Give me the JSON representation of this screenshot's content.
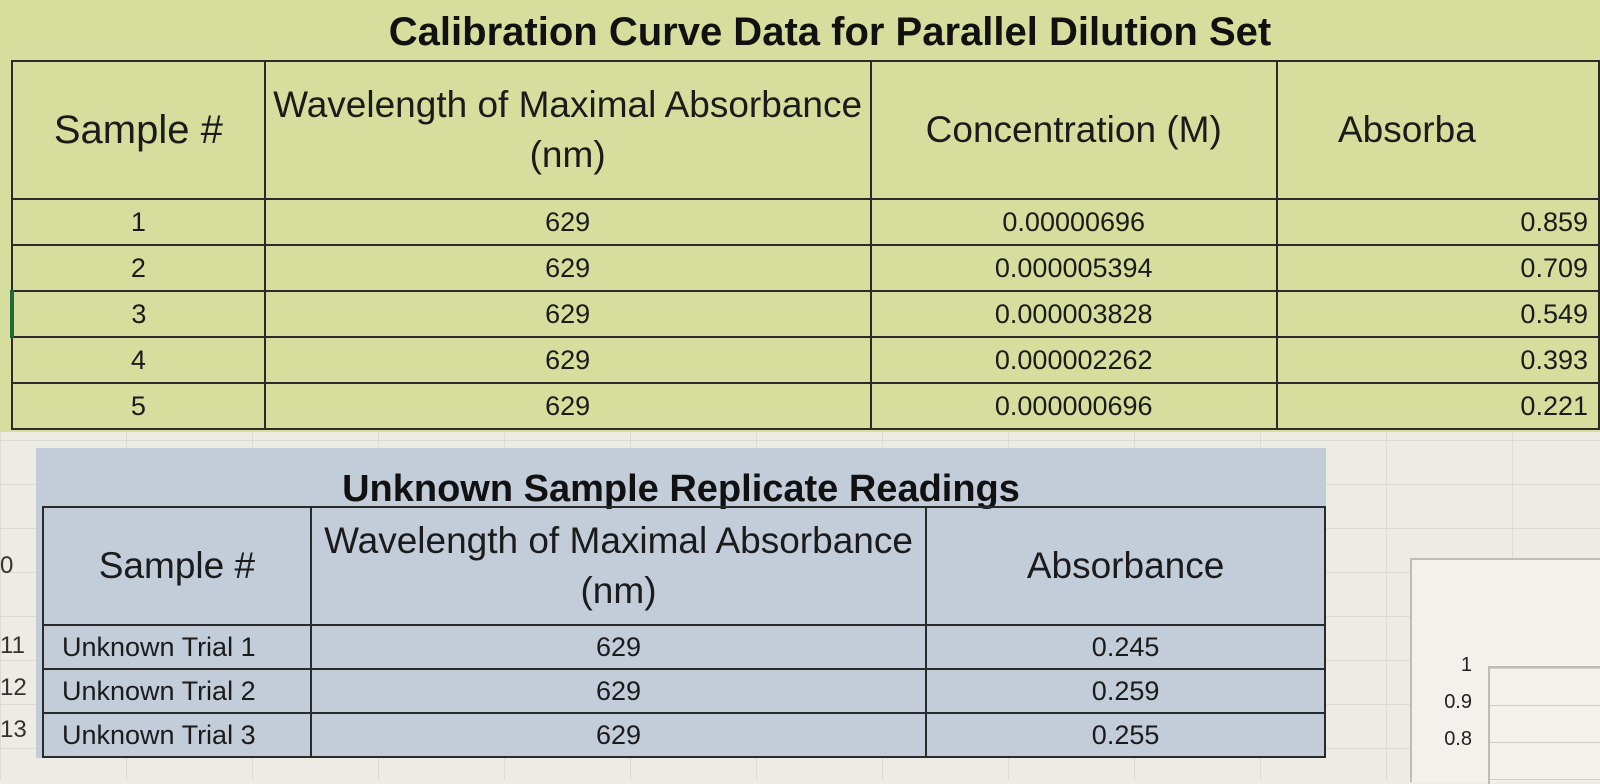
{
  "calibration": {
    "title": "Calibration Curve Data for Parallel Dilution Set",
    "headers": [
      "Sample #",
      "Wavelength of Maximal Absorbance (nm)",
      "Concentration (M)",
      "Absorba"
    ],
    "rows": [
      {
        "sample": "1",
        "wavelength": "629",
        "concentration": "0.00000696",
        "absorbance": "0.859"
      },
      {
        "sample": "2",
        "wavelength": "629",
        "concentration": "0.000005394",
        "absorbance": "0.709"
      },
      {
        "sample": "3",
        "wavelength": "629",
        "concentration": "0.000003828",
        "absorbance": "0.549"
      },
      {
        "sample": "4",
        "wavelength": "629",
        "concentration": "0.000002262",
        "absorbance": "0.393"
      },
      {
        "sample": "5",
        "wavelength": "629",
        "concentration": "0.000000696",
        "absorbance": "0.221"
      }
    ]
  },
  "unknown": {
    "title": "Unknown Sample Replicate Readings",
    "headers": [
      "Sample #",
      "Wavelength of Maximal Absorbance (nm)",
      "Absorbance"
    ],
    "rows": [
      {
        "sample": "Unknown Trial 1",
        "wavelength": "629",
        "absorbance": "0.245"
      },
      {
        "sample": "Unknown Trial 2",
        "wavelength": "629",
        "absorbance": "0.259"
      },
      {
        "sample": "Unknown Trial 3",
        "wavelength": "629",
        "absorbance": "0.255"
      }
    ]
  },
  "row_numbers": [
    "0",
    "11",
    "12",
    "13"
  ],
  "chart_fragment": {
    "y_ticks": [
      "1",
      "0.9",
      "0.8"
    ]
  },
  "colors": {
    "calibration_fill": "#d7de9d",
    "unknown_fill": "#c3ccd9"
  }
}
